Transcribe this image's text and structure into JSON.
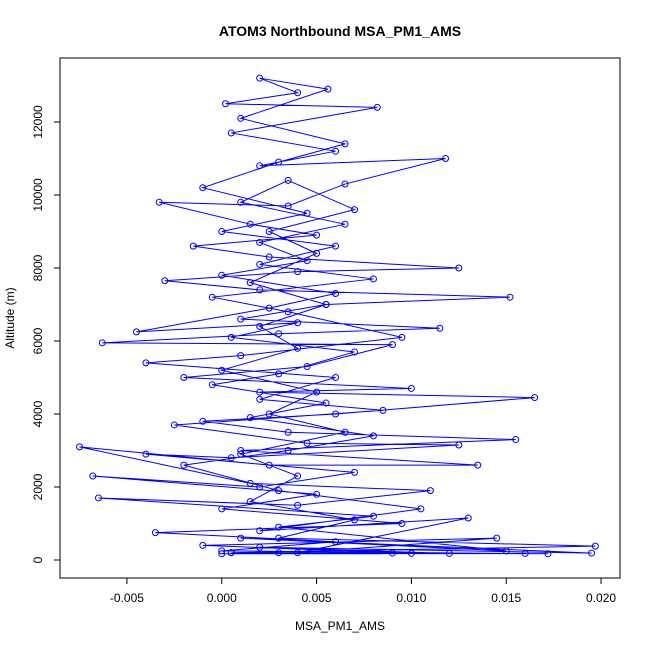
{
  "chart_data": {
    "type": "line",
    "title": "ATOM3 Northbound MSA_PM1_AMS",
    "xlabel": "MSA_PM1_AMS",
    "ylabel": "Altitude (m)",
    "color": "#0000ff",
    "markers": true,
    "xlim": [
      -0.00853,
      0.021
    ],
    "ylim": [
      -493,
      13753
    ],
    "xticks": [
      -0.005,
      {
        "value": 0,
        "label": "0.000"
      },
      0.005,
      {
        "value": 0.01,
        "label": "0.010"
      },
      0.015,
      {
        "value": 0.02,
        "label": "0.020"
      }
    ],
    "yticks": [
      0,
      2000,
      4000,
      6000,
      8000,
      10000,
      12000
    ],
    "x": [
      0.0005,
      0.012,
      0.002,
      0.0195,
      0.001,
      0.015,
      0.003,
      0.008,
      -0.0065,
      0.004,
      0.011,
      0.0015,
      -0.0075,
      0.0025,
      0.0135,
      0.001,
      0.0155,
      0.0035,
      -0.001,
      0.006,
      0.0165,
      0.002,
      0.01,
      -0.002,
      0.0045,
      0.009,
      -0.0063,
      0.003,
      0.0115,
      0.001,
      0.0055,
      0.0152,
      0.002,
      -0.003,
      0.004,
      0.0125,
      0.0025,
      -0.0015,
      0.005,
      0.0015,
      -0.0033,
      0.0035,
      0.0065,
      0.0118,
      0.002,
      0.006,
      0.0005,
      0.0082,
      0.0002,
      0.004,
      0.002,
      0.0056,
      0.001,
      0.0065,
      0.003,
      -0.001,
      0.0045,
      0,
      0.006,
      0.002,
      0.008,
      -0.0005,
      0.0035,
      0.0095,
      0.001,
      -0.004,
      0.006,
      0.002,
      0.0085,
      -0.0025,
      0.0045,
      0.0125,
      0.0005,
      -0.004,
      0.007,
      0.002,
      -0.0068,
      0.005,
      0,
      0.0095,
      -0.0035,
      0.006,
      0,
      0.0172,
      0.003,
      0.01,
      -0.001,
      0.0145,
      0.004,
      0.013,
      0.002,
      0.0105,
      0.003,
      -0.002,
      0.0035,
      0.008,
      0.0015,
      0.0055,
      -0.0005,
      0.003,
      0.007,
      0.0005,
      0.004,
      -0.0045,
      0.0025,
      0.006,
      0,
      0.0045,
      0.002,
      0.0065,
      0.001,
      0.0035,
      0.007,
      0.0025,
      0.005,
      0.0015,
      0.0055,
      0.002,
      0.004,
      0,
      0.005,
      0.0025,
      0.0065,
      0.001,
      0.004,
      0.0015,
      0.007,
      0.003,
      0.0197,
      0.0005,
      0.009,
      0.016,
      0
    ],
    "values": [
      200,
      180,
      350,
      190,
      600,
      250,
      900,
      1200,
      1700,
      1500,
      1900,
      2100,
      3100,
      2600,
      2600,
      3000,
      3300,
      3500,
      3800,
      4000,
      4450,
      4600,
      4700,
      5000,
      5300,
      5900,
      5950,
      6200,
      6350,
      6600,
      7000,
      7200,
      7400,
      7650,
      7900,
      8000,
      8300,
      8600,
      8900,
      9200,
      9800,
      9700,
      10300,
      11000,
      10800,
      11200,
      11700,
      12400,
      12500,
      12800,
      13200,
      12900,
      12100,
      11400,
      10900,
      10200,
      9500,
      9000,
      8600,
      8100,
      7700,
      7200,
      6800,
      6100,
      5600,
      5400,
      5000,
      4400,
      4100,
      3700,
      3200,
      3150,
      2800,
      2900,
      2400,
      2000,
      2300,
      1800,
      1400,
      1000,
      750,
      500,
      250,
      170,
      200,
      180,
      400,
      600,
      200,
      1150,
      800,
      1400,
      1900,
      2600,
      3000,
      3400,
      3900,
      4300,
      4800,
      5100,
      5700,
      6100,
      6500,
      6250,
      6900,
      7300,
      7800,
      8200,
      8700,
      9200,
      9800,
      10400,
      9600,
      9000,
      8400,
      7600,
      7000,
      6400,
      5800,
      5200,
      4600,
      4000,
      3500,
      2900,
      2300,
      1600,
      1100,
      600,
      380,
      200,
      190,
      180,
      170
    ]
  }
}
